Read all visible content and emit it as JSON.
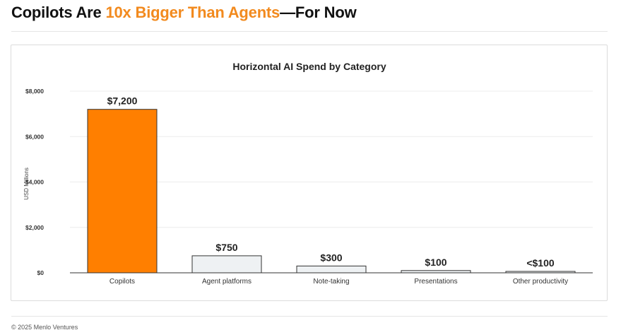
{
  "headline": {
    "part1": "Copilots Are ",
    "accent": "10x Bigger Than Agents",
    "part2": "—For Now"
  },
  "footer": "© 2025 Menlo Ventures",
  "colors": {
    "accent": "#f28a1e",
    "highlight_bar": "#ff7f00",
    "default_bar": "#eef1f3",
    "bar_outline": "#333333"
  },
  "chart_data": {
    "type": "bar",
    "title": "Horizontal AI Spend by Category",
    "xlabel": "",
    "ylabel": "USD Millions",
    "categories": [
      "Copilots",
      "Agent platforms",
      "Note-taking",
      "Presentations",
      "Other productivity"
    ],
    "values": [
      7200,
      750,
      300,
      100,
      50
    ],
    "data_labels": [
      "$7,200",
      "$750",
      "$300",
      "$100",
      "<$100"
    ],
    "highlight": [
      true,
      false,
      false,
      false,
      false
    ],
    "ylim": [
      0,
      8000
    ],
    "yticks": [
      0,
      2000,
      4000,
      6000,
      8000
    ],
    "ytick_labels": [
      "$0",
      "$2,000",
      "$4,000",
      "$6,000",
      "$8,000"
    ],
    "grid": true,
    "legend": "none"
  }
}
